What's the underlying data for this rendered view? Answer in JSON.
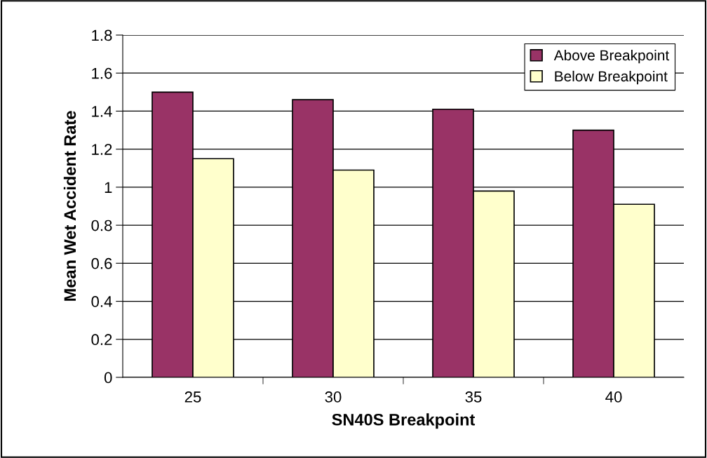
{
  "chart_data": {
    "type": "bar",
    "xlabel": "SN40S Breakpoint",
    "ylabel": "Mean Wet Accident Rate",
    "categories": [
      "25",
      "30",
      "35",
      "40"
    ],
    "series": [
      {
        "name": "Above Breakpoint",
        "color": "#993366",
        "values": [
          1.5,
          1.46,
          1.41,
          1.3
        ]
      },
      {
        "name": "Below Breakpoint",
        "color": "#ffffcc",
        "values": [
          1.15,
          1.09,
          0.98,
          0.91
        ]
      }
    ],
    "ylim": [
      0,
      1.8
    ],
    "yticks": [
      0,
      0.2,
      0.4,
      0.6,
      0.8,
      1,
      1.2,
      1.4,
      1.6,
      1.8
    ],
    "grid": "y",
    "legend": "top right"
  }
}
